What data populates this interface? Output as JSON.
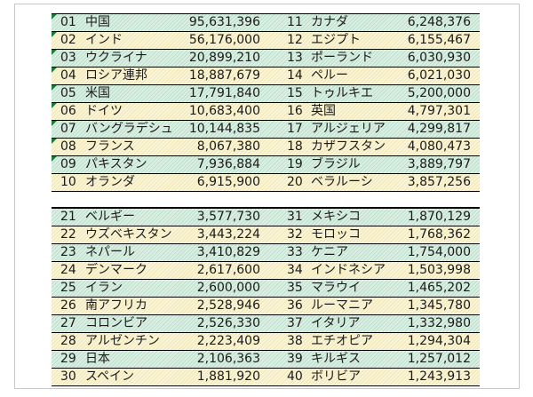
{
  "rows": [
    {
      "r1": "01",
      "c1": "中国",
      "v1": "95,631,396",
      "r2": "11",
      "c2": "カナダ",
      "v2": "6,248,376",
      "band": "b0",
      "tri": true
    },
    {
      "r1": "02",
      "c1": "インド",
      "v1": "56,176,000",
      "r2": "12",
      "c2": "エジプト",
      "v2": "6,155,467",
      "band": "b1",
      "tri": true
    },
    {
      "r1": "03",
      "c1": "ウクライナ",
      "v1": "20,899,210",
      "r2": "13",
      "c2": "ポーランド",
      "v2": "6,030,930",
      "band": "b0",
      "tri": true
    },
    {
      "r1": "04",
      "c1": "ロシア連邦",
      "v1": "18,887,679",
      "r2": "14",
      "c2": "ペルー",
      "v2": "6,021,030",
      "band": "b1",
      "tri": true
    },
    {
      "r1": "05",
      "c1": "米国",
      "v1": "17,791,840",
      "r2": "15",
      "c2": "トゥルキエ",
      "v2": "5,200,000",
      "band": "b0",
      "tri": true
    },
    {
      "r1": "06",
      "c1": "ドイツ",
      "v1": "10,683,400",
      "r2": "16",
      "c2": "英国",
      "v2": "4,797,301",
      "band": "b1",
      "tri": true
    },
    {
      "r1": "07",
      "c1": "バングラデシュ",
      "v1": "10,144,835",
      "r2": "17",
      "c2": "アルジェリア",
      "v2": "4,299,817",
      "band": "b0",
      "tri": true
    },
    {
      "r1": "08",
      "c1": "フランス",
      "v1": "8,067,380",
      "r2": "18",
      "c2": "カザフスタン",
      "v2": "4,080,473",
      "band": "b1",
      "tri": true
    },
    {
      "r1": "09",
      "c1": "パキスタン",
      "v1": "7,936,884",
      "r2": "19",
      "c2": "ブラジル",
      "v2": "3,889,797",
      "band": "b0",
      "tri": true
    },
    {
      "r1": "10",
      "c1": "オランダ",
      "v1": "6,915,900",
      "r2": "20",
      "c2": "ベラルーシ",
      "v2": "3,857,256",
      "band": "b1",
      "tri": false
    },
    {
      "gap": true
    },
    {
      "r1": "21",
      "c1": "ベルギー",
      "v1": "3,577,730",
      "r2": "31",
      "c2": "メキシコ",
      "v2": "1,870,129",
      "band": "b0",
      "tri": false
    },
    {
      "r1": "22",
      "c1": "ウズベキスタン",
      "v1": "3,443,224",
      "r2": "32",
      "c2": "モロッコ",
      "v2": "1,768,362",
      "band": "b1",
      "tri": false
    },
    {
      "r1": "23",
      "c1": "ネパール",
      "v1": "3,410,829",
      "r2": "33",
      "c2": "ケニア",
      "v2": "1,754,000",
      "band": "b0",
      "tri": false
    },
    {
      "r1": "24",
      "c1": "デンマーク",
      "v1": "2,617,600",
      "r2": "34",
      "c2": "インドネシア",
      "v2": "1,503,998",
      "band": "b1",
      "tri": false
    },
    {
      "r1": "25",
      "c1": "イラン",
      "v1": "2,600,000",
      "r2": "35",
      "c2": "マラウイ",
      "v2": "1,465,202",
      "band": "b0",
      "tri": false
    },
    {
      "r1": "26",
      "c1": "南アフリカ",
      "v1": "2,528,946",
      "r2": "36",
      "c2": "ルーマニア",
      "v2": "1,345,780",
      "band": "b1",
      "tri": false
    },
    {
      "r1": "27",
      "c1": "コロンビア",
      "v1": "2,526,330",
      "r2": "37",
      "c2": "イタリア",
      "v2": "1,332,980",
      "band": "b0",
      "tri": false
    },
    {
      "r1": "28",
      "c1": "アルゼンチン",
      "v1": "2,223,409",
      "r2": "38",
      "c2": "エチオピア",
      "v2": "1,294,304",
      "band": "b1",
      "tri": false
    },
    {
      "r1": "29",
      "c1": "日本",
      "v1": "2,106,363",
      "r2": "39",
      "c2": "キルギス",
      "v2": "1,257,012",
      "band": "b0",
      "tri": false
    },
    {
      "r1": "30",
      "c1": "スペイン",
      "v1": "1,881,920",
      "r2": "40",
      "c2": "ボリビア",
      "v2": "1,243,913",
      "band": "b1",
      "tri": false
    }
  ],
  "colors": {
    "band_green": "#dcefe3",
    "band_yellow": "#fbf5d8",
    "marker": "#1e7a3c",
    "rule": "#000000"
  }
}
